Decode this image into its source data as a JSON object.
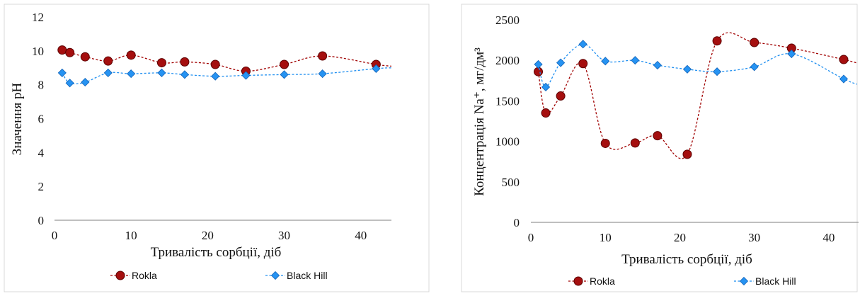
{
  "chart_data": [
    {
      "type": "line",
      "title": "",
      "xlabel": "Тривалість сорбції, діб",
      "ylabel": "Значення pH",
      "xlim": [
        0,
        44
      ],
      "ylim": [
        0,
        12
      ],
      "xticks": [
        "0",
        "10",
        "20",
        "30",
        "40"
      ],
      "yticks": [
        "0",
        "2",
        "4",
        "6",
        "8",
        "10",
        "12"
      ],
      "grid": false,
      "legend": "bottom",
      "series": [
        {
          "name": "Rokla",
          "marker": "circle",
          "color": "#a00000",
          "x": [
            1,
            2,
            4,
            7,
            10,
            14,
            17,
            21,
            25,
            30,
            35,
            42,
            44
          ],
          "y": [
            10.05,
            9.9,
            9.65,
            9.4,
            9.75,
            9.3,
            9.35,
            9.2,
            8.8,
            9.2,
            9.7,
            9.2,
            9.1
          ]
        },
        {
          "name": "Black Hill",
          "marker": "diamond",
          "color": "#1f8ff0",
          "x": [
            1,
            2,
            4,
            7,
            10,
            14,
            17,
            21,
            25,
            30,
            35,
            42,
            44
          ],
          "y": [
            8.7,
            8.1,
            8.15,
            8.7,
            8.65,
            8.7,
            8.6,
            8.5,
            8.55,
            8.6,
            8.65,
            8.95,
            9.0
          ]
        }
      ]
    },
    {
      "type": "line",
      "title": "",
      "xlabel": "Тривалість сорбції, діб",
      "ylabel": "Концентрація Na⁺, мг/дм³",
      "xlim": [
        0,
        44
      ],
      "ylim": [
        0,
        2500
      ],
      "xticks": [
        "0",
        "10",
        "20",
        "30",
        "40"
      ],
      "yticks": [
        "0",
        "500",
        "1000",
        "1500",
        "2000",
        "2500"
      ],
      "grid": false,
      "legend": "bottom",
      "series": [
        {
          "name": "Rokla",
          "marker": "circle",
          "color": "#a00000",
          "x": [
            1,
            2,
            4,
            7,
            10,
            14,
            17,
            21,
            25,
            30,
            35,
            42,
            44
          ],
          "y": [
            1860,
            1350,
            1560,
            1960,
            975,
            980,
            1070,
            840,
            2240,
            2220,
            2150,
            2010,
            1960
          ]
        },
        {
          "name": "Black Hill",
          "marker": "diamond",
          "color": "#1f8ff0",
          "x": [
            1,
            2,
            4,
            7,
            10,
            14,
            17,
            21,
            25,
            30,
            35,
            42,
            44
          ],
          "y": [
            1950,
            1670,
            1970,
            2200,
            1990,
            2000,
            1940,
            1890,
            1860,
            1920,
            2080,
            1770,
            1700
          ]
        }
      ]
    }
  ]
}
